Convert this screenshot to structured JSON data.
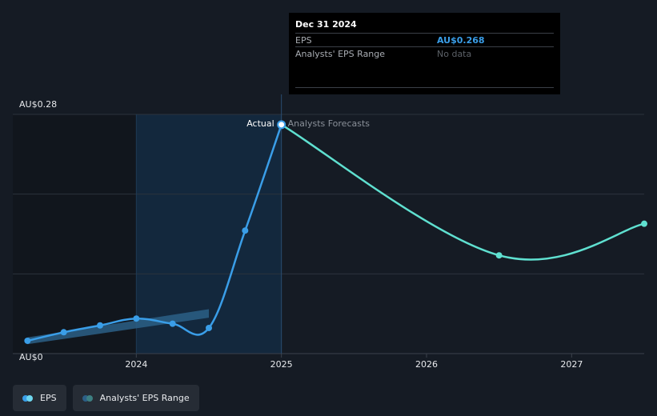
{
  "chart_data": {
    "type": "line",
    "title": "EPS",
    "y_unit_prefix": "AU$",
    "ylim": [
      0,
      0.28
    ],
    "y_ticks": [
      {
        "value": 0,
        "label": "AU$0"
      },
      {
        "value": 0.28,
        "label": "AU$0.28"
      }
    ],
    "x_ticks": [
      {
        "value": 2024.0,
        "label": "2024"
      },
      {
        "value": 2025.0,
        "label": "2025"
      },
      {
        "value": 2026.0,
        "label": "2026"
      },
      {
        "value": 2027.0,
        "label": "2027"
      }
    ],
    "divider_x": 2025.0,
    "highlight_start_x": 2024.0,
    "actual_label": "Actual",
    "forecast_label": "Analysts Forecasts",
    "series": [
      {
        "name": "EPS (actual)",
        "color": "#3a9ee8",
        "points": [
          {
            "x": 2023.25,
            "y": 0.015
          },
          {
            "x": 2023.5,
            "y": 0.025
          },
          {
            "x": 2023.75,
            "y": 0.033
          },
          {
            "x": 2024.0,
            "y": 0.041
          },
          {
            "x": 2024.25,
            "y": 0.035
          },
          {
            "x": 2024.5,
            "y": 0.03
          },
          {
            "x": 2024.75,
            "y": 0.144
          },
          {
            "x": 2025.0,
            "y": 0.268
          }
        ]
      },
      {
        "name": "EPS (analysts forecast)",
        "color": "#5fe0d0",
        "points": [
          {
            "x": 2025.0,
            "y": 0.268
          },
          {
            "x": 2026.5,
            "y": 0.115
          },
          {
            "x": 2027.5,
            "y": 0.152
          }
        ]
      }
    ],
    "range_band": {
      "name": "Analysts' EPS Range",
      "color": "#2c5f86",
      "points": [
        {
          "x": 2023.25,
          "low": 0.011,
          "high": 0.019
        },
        {
          "x": 2024.5,
          "low": 0.042,
          "high": 0.052
        }
      ]
    }
  },
  "tooltip": {
    "date": "Dec 31 2024",
    "rows": [
      {
        "label": "EPS",
        "value": "AU$0.268"
      },
      {
        "label": "Analysts' EPS Range",
        "value": "No data"
      }
    ]
  },
  "legend": {
    "items": [
      {
        "label": "EPS"
      },
      {
        "label": "Analysts' EPS Range"
      }
    ]
  }
}
